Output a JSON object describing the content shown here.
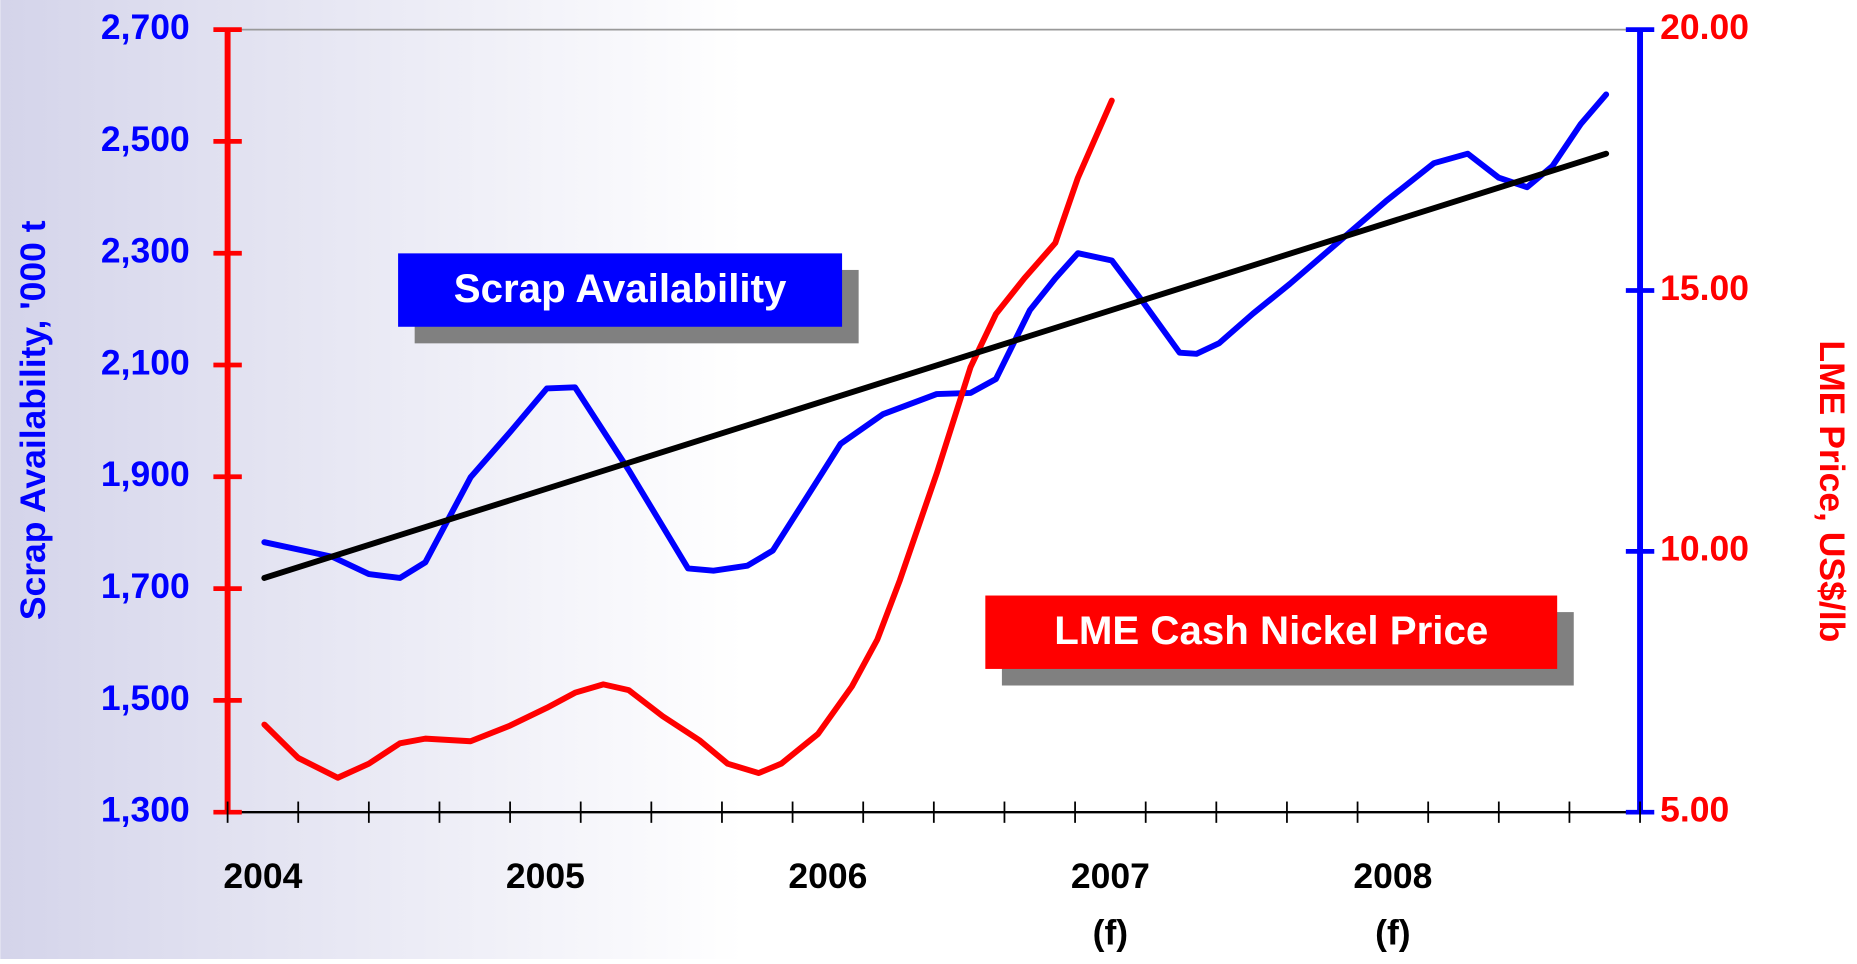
{
  "chart_data": {
    "type": "line",
    "ylabel": "Scrap Availability, '000 t",
    "y2label": "LME Price, US$/lb",
    "xlim": [
      2004,
      2009
    ],
    "xticks": [
      {
        "value": 2004.125,
        "label": "2004"
      },
      {
        "value": 2005.125,
        "label": "2005"
      },
      {
        "value": 2006.125,
        "label": "2006"
      },
      {
        "value": 2007.125,
        "label": "2007"
      },
      {
        "value": 2008.125,
        "label": "2008"
      }
    ],
    "xminorticks": [
      2004,
      2004.25,
      2004.5,
      2004.75,
      2005,
      2005.25,
      2005.5,
      2005.75,
      2006,
      2006.25,
      2006.5,
      2006.75,
      2007,
      2007.25,
      2007.5,
      2007.75,
      2008,
      2008.25,
      2008.5,
      2008.75,
      2009
    ],
    "xtick_notes": [
      {
        "value": 2007.125,
        "label": "(f)"
      },
      {
        "value": 2008.125,
        "label": "(f)"
      }
    ],
    "ylim": [
      1300,
      2700
    ],
    "yticks": [
      {
        "value": 1300,
        "label": "1,300"
      },
      {
        "value": 1500,
        "label": "1,500"
      },
      {
        "value": 1700,
        "label": "1,700"
      },
      {
        "value": 1900,
        "label": "1,900"
      },
      {
        "value": 2100,
        "label": "2,100"
      },
      {
        "value": 2300,
        "label": "2,300"
      },
      {
        "value": 2500,
        "label": "2,500"
      },
      {
        "value": 2700,
        "label": "2,700"
      }
    ],
    "y2lim": [
      5,
      20
    ],
    "y2ticks": [
      {
        "value": 5,
        "label": "5.00"
      },
      {
        "value": 10,
        "label": "10.00"
      },
      {
        "value": 15,
        "label": "15.00"
      },
      {
        "value": 20,
        "label": "20.00"
      }
    ],
    "series": [
      {
        "color": "#0000ff",
        "axis": "y",
        "x": [
          2004.13,
          2004.37,
          2004.5,
          2004.61,
          2004.7,
          2004.86,
          2005.0,
          2005.13,
          2005.23,
          2005.42,
          2005.63,
          2005.72,
          2005.84,
          2005.93,
          2006.09,
          2006.17,
          2006.32,
          2006.51,
          2006.63,
          2006.72,
          2006.84,
          2006.93,
          2007.01,
          2007.13,
          2007.24,
          2007.37,
          2007.43,
          2007.51,
          2007.63,
          2007.76,
          2007.93,
          2008.1,
          2008.27,
          2008.39,
          2008.5,
          2008.6,
          2008.69,
          2008.79,
          2008.88
        ],
        "values": [
          1783,
          1757,
          1726,
          1719,
          1747,
          1899,
          1980,
          2058,
          2060,
          1912,
          1736,
          1732,
          1741,
          1768,
          1895,
          1959,
          2012,
          2048,
          2050,
          2075,
          2198,
          2255,
          2300,
          2287,
          2213,
          2122,
          2120,
          2139,
          2192,
          2245,
          2319,
          2393,
          2461,
          2478,
          2435,
          2418,
          2456,
          2531,
          2584
        ]
      },
      {
        "color": "#ff0000",
        "axis": "y2",
        "x": [
          2004.13,
          2004.25,
          2004.39,
          2004.5,
          2004.61,
          2004.7,
          2004.86,
          2005.0,
          2005.13,
          2005.23,
          2005.33,
          2005.42,
          2005.54,
          2005.67,
          2005.77,
          2005.88,
          2005.96,
          2006.09,
          2006.21,
          2006.3,
          2006.38,
          2006.51,
          2006.63,
          2006.72,
          2006.82,
          2006.93,
          2007.01,
          2007.13
        ],
        "values": [
          6.68,
          6.04,
          5.66,
          5.93,
          6.32,
          6.41,
          6.36,
          6.66,
          7.0,
          7.29,
          7.45,
          7.34,
          6.84,
          6.38,
          5.93,
          5.75,
          5.93,
          6.5,
          7.41,
          8.31,
          9.45,
          11.49,
          13.53,
          14.55,
          15.23,
          15.91,
          17.16,
          18.64
        ]
      },
      {
        "color": "#000000",
        "axis": "y",
        "x": [
          2004.13,
          2008.88
        ],
        "values": [
          1719,
          2478
        ]
      }
    ],
    "annotations": [
      {
        "text": "Scrap Availability",
        "color": "#0000ff"
      },
      {
        "text": "LME Cash Nickel Price",
        "color": "#ff0000"
      }
    ]
  }
}
